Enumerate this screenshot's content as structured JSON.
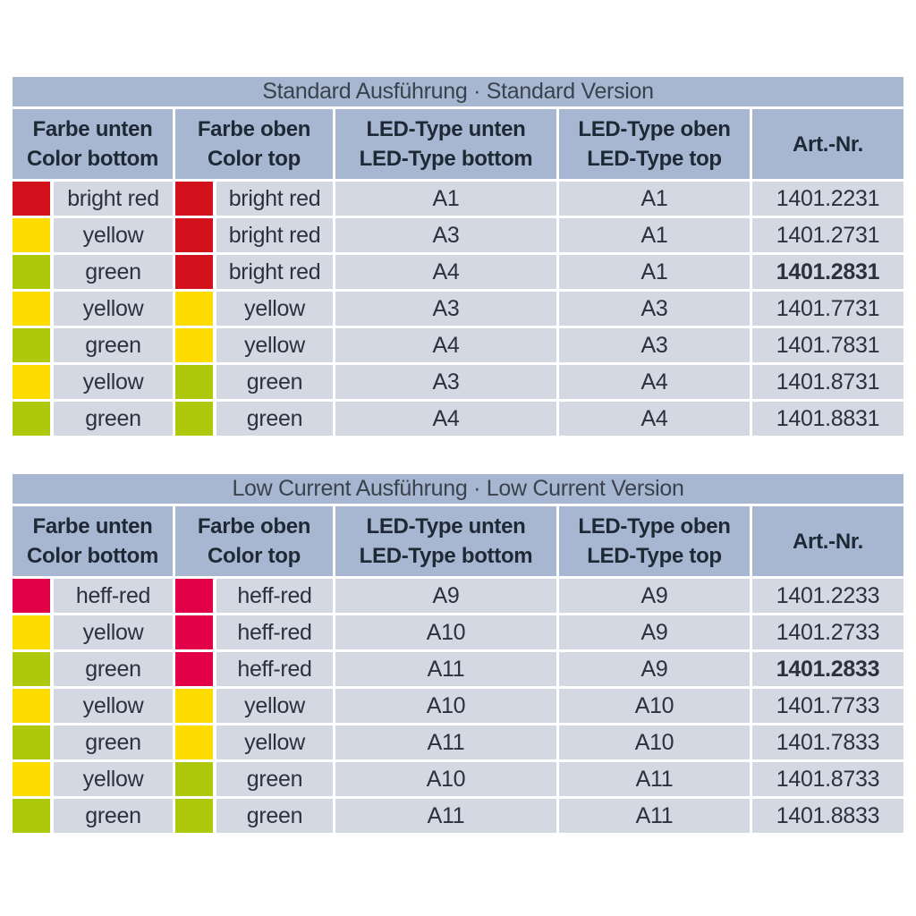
{
  "page": {
    "background": "#ffffff"
  },
  "colors": {
    "band": "#a8b7d1",
    "row_bg": "#d3d8e2",
    "bright_red": "#d2111c",
    "heff_red": "#e20049",
    "yellow": "#ffdc00",
    "green": "#aec90b",
    "header_text": "#1f2935",
    "data_text": "#2a323e"
  },
  "headers": {
    "col1": {
      "line1": "Farbe unten",
      "line2": "Color bottom"
    },
    "col2": {
      "line1": "Farbe oben",
      "line2": "Color top"
    },
    "col3": {
      "line1": "LED-Type unten",
      "line2": "LED-Type bottom"
    },
    "col4": {
      "line1": "LED-Type oben",
      "line2": "LED-Type top"
    },
    "col5": {
      "line1": "Art.-Nr."
    }
  },
  "tables": [
    {
      "title": "Standard Ausführung · Standard Version",
      "rows": [
        {
          "cb": {
            "label": "bright red",
            "hex": "#d2111c"
          },
          "ct": {
            "label": "bright red",
            "hex": "#d2111c"
          },
          "led_bottom": "A1",
          "led_top": "A1",
          "artnr": "1401.2231",
          "artnr_bold": false
        },
        {
          "cb": {
            "label": "yellow",
            "hex": "#ffdc00"
          },
          "ct": {
            "label": "bright red",
            "hex": "#d2111c"
          },
          "led_bottom": "A3",
          "led_top": "A1",
          "artnr": "1401.2731",
          "artnr_bold": false
        },
        {
          "cb": {
            "label": "green",
            "hex": "#aec90b"
          },
          "ct": {
            "label": "bright red",
            "hex": "#d2111c"
          },
          "led_bottom": "A4",
          "led_top": "A1",
          "artnr": "1401.2831",
          "artnr_bold": true
        },
        {
          "cb": {
            "label": "yellow",
            "hex": "#ffdc00"
          },
          "ct": {
            "label": "yellow",
            "hex": "#ffdc00"
          },
          "led_bottom": "A3",
          "led_top": "A3",
          "artnr": "1401.7731",
          "artnr_bold": false
        },
        {
          "cb": {
            "label": "green",
            "hex": "#aec90b"
          },
          "ct": {
            "label": "yellow",
            "hex": "#ffdc00"
          },
          "led_bottom": "A4",
          "led_top": "A3",
          "artnr": "1401.7831",
          "artnr_bold": false
        },
        {
          "cb": {
            "label": "yellow",
            "hex": "#ffdc00"
          },
          "ct": {
            "label": "green",
            "hex": "#aec90b"
          },
          "led_bottom": "A3",
          "led_top": "A4",
          "artnr": "1401.8731",
          "artnr_bold": false
        },
        {
          "cb": {
            "label": "green",
            "hex": "#aec90b"
          },
          "ct": {
            "label": "green",
            "hex": "#aec90b"
          },
          "led_bottom": "A4",
          "led_top": "A4",
          "artnr": "1401.8831",
          "artnr_bold": false
        }
      ]
    },
    {
      "title": "Low Current Ausführung · Low Current Version",
      "rows": [
        {
          "cb": {
            "label": "heff-red",
            "hex": "#e20049"
          },
          "ct": {
            "label": "heff-red",
            "hex": "#e20049"
          },
          "led_bottom": "A9",
          "led_top": "A9",
          "artnr": "1401.2233",
          "artnr_bold": false
        },
        {
          "cb": {
            "label": "yellow",
            "hex": "#ffdc00"
          },
          "ct": {
            "label": "heff-red",
            "hex": "#e20049"
          },
          "led_bottom": "A10",
          "led_top": "A9",
          "artnr": "1401.2733",
          "artnr_bold": false
        },
        {
          "cb": {
            "label": "green",
            "hex": "#aec90b"
          },
          "ct": {
            "label": "heff-red",
            "hex": "#e20049"
          },
          "led_bottom": "A11",
          "led_top": "A9",
          "artnr": "1401.2833",
          "artnr_bold": true
        },
        {
          "cb": {
            "label": "yellow",
            "hex": "#ffdc00"
          },
          "ct": {
            "label": "yellow",
            "hex": "#ffdc00"
          },
          "led_bottom": "A10",
          "led_top": "A10",
          "artnr": "1401.7733",
          "artnr_bold": false
        },
        {
          "cb": {
            "label": "green",
            "hex": "#aec90b"
          },
          "ct": {
            "label": "yellow",
            "hex": "#ffdc00"
          },
          "led_bottom": "A11",
          "led_top": "A10",
          "artnr": "1401.7833",
          "artnr_bold": false
        },
        {
          "cb": {
            "label": "yellow",
            "hex": "#ffdc00"
          },
          "ct": {
            "label": "green",
            "hex": "#aec90b"
          },
          "led_bottom": "A10",
          "led_top": "A11",
          "artnr": "1401.8733",
          "artnr_bold": false
        },
        {
          "cb": {
            "label": "green",
            "hex": "#aec90b"
          },
          "ct": {
            "label": "green",
            "hex": "#aec90b"
          },
          "led_bottom": "A11",
          "led_top": "A11",
          "artnr": "1401.8833",
          "artnr_bold": false
        }
      ]
    }
  ]
}
